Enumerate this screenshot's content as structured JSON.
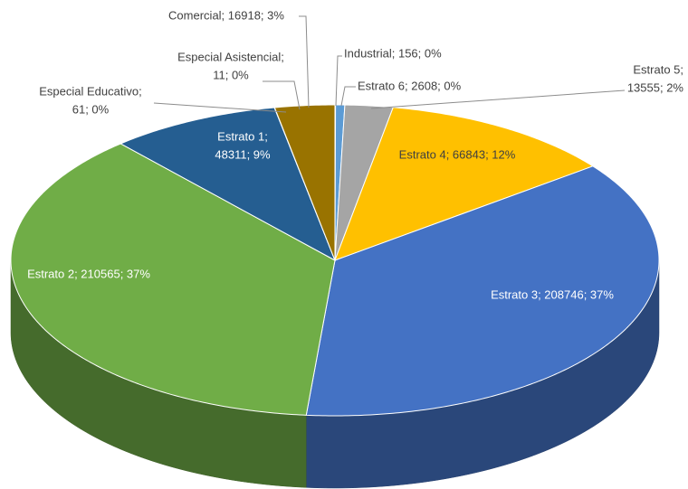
{
  "chart_data": {
    "type": "pie3d",
    "categories": [
      "Industrial",
      "Estrato 6",
      "Estrato 5",
      "Estrato 4",
      "Estrato 3",
      "Estrato 2",
      "Estrato 1",
      "Especial Educativo",
      "Especial Asistencial",
      "Comercial"
    ],
    "values": [
      156,
      2608,
      13555,
      66843,
      208746,
      210565,
      48311,
      61,
      11,
      16918
    ],
    "value_labels": [
      [
        "Industrial; 156; 0%"
      ],
      [
        "Estrato 6; 2608; 0%"
      ],
      [
        "Estrato 5;",
        "13555; 2%"
      ],
      [
        "Estrato 4; 66843; 12%"
      ],
      [
        "Estrato 3; 208746; 37%"
      ],
      [
        "Estrato 2; 210565; 37%"
      ],
      [
        "Estrato 1;",
        "48311; 9%"
      ],
      [
        "Especial Educativo;",
        "61; 0%"
      ],
      [
        "Especial Asistencial;",
        "11; 0%"
      ],
      [
        "Comercial; 16918; 3%"
      ]
    ],
    "colors": [
      "#ed7d31",
      "#5b9bd5",
      "#a5a5a5",
      "#ffc000",
      "#4472c4",
      "#70ad47",
      "#255e91",
      "#264478",
      "#9e480e",
      "#997300"
    ]
  }
}
